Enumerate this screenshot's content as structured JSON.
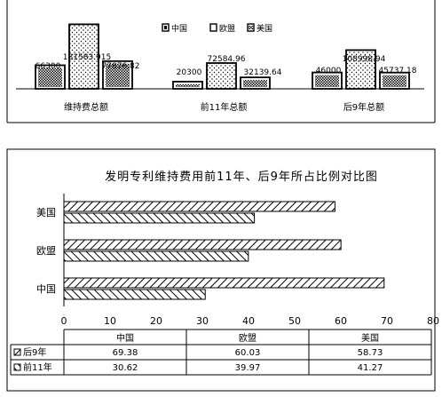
{
  "chart_data": [
    {
      "type": "bar",
      "categories": [
        "维持费总额",
        "前11年总额",
        "后9年总额"
      ],
      "series": [
        {
          "name": "中国",
          "values": [
            66300,
            20300,
            46000
          ]
        },
        {
          "name": "欧盟",
          "values": [
            181583.915,
            72584.96,
            108998.94
          ]
        },
        {
          "name": "美国",
          "values": [
            77876.82,
            32139.64,
            45737.18
          ]
        }
      ],
      "data_labels": [
        [
          "66300",
          "181583.915",
          "77876.82"
        ],
        [
          "20300",
          "72584.96",
          "32139.64"
        ],
        [
          "46000",
          "108998.94",
          "45737.18"
        ]
      ],
      "legend_position": "top",
      "ylim": [
        0,
        200000
      ]
    },
    {
      "type": "bar",
      "orientation": "horizontal",
      "title": "发明专利维持费用前11年、后9年所占比例对比图",
      "categories": [
        "美国",
        "欧盟",
        "中国"
      ],
      "series": [
        {
          "name": "后9年",
          "values": [
            58.73,
            60.03,
            69.38
          ]
        },
        {
          "name": "前11年",
          "values": [
            41.27,
            39.97,
            30.62
          ]
        }
      ],
      "xlim": [
        0,
        80
      ],
      "xticks": [
        "0",
        "10",
        "20",
        "30",
        "40",
        "50",
        "60",
        "70",
        "80"
      ],
      "table": {
        "columns": [
          "中国",
          "欧盟",
          "美国"
        ],
        "rows": [
          {
            "label": "后9年",
            "values": [
              "69.38",
              "60.03",
              "58.73"
            ]
          },
          {
            "label": "前11年",
            "values": [
              "30.62",
              "39.97",
              "41.27"
            ]
          }
        ]
      }
    }
  ]
}
